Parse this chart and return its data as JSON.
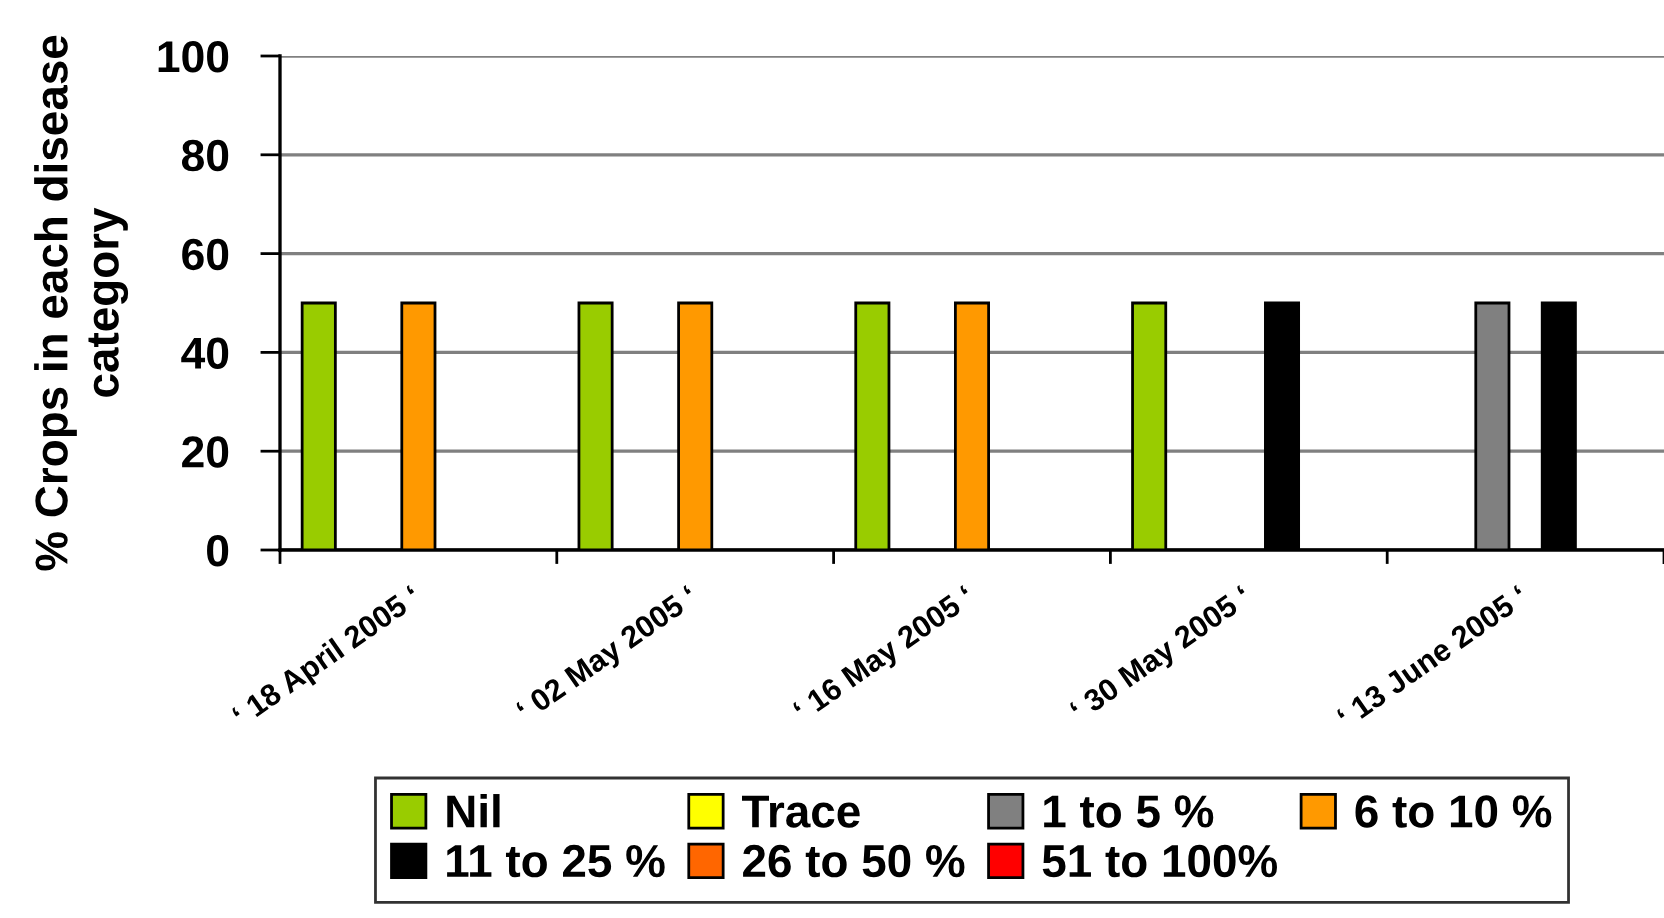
{
  "chart_data": {
    "type": "bar",
    "ylabel": "% Crops in each disease category",
    "categories": [
      "‘ 18 April 2005 ‘",
      "‘ 02 May 2005 ‘",
      "‘ 16 May 2005 ‘",
      "‘ 30 May 2005 ‘",
      "‘ 13 June 2005 ‘"
    ],
    "series": [
      {
        "name": "Nil",
        "color": "#99cc00",
        "values": [
          50,
          50,
          50,
          50,
          null
        ]
      },
      {
        "name": "Trace",
        "color": "#ffff00",
        "values": [
          null,
          null,
          null,
          null,
          null
        ]
      },
      {
        "name": "1 to 5 %",
        "color": "#808080",
        "values": [
          null,
          null,
          null,
          null,
          50
        ]
      },
      {
        "name": "6 to 10 %",
        "color": "#ff9900",
        "values": [
          50,
          50,
          50,
          null,
          null
        ]
      },
      {
        "name": "11 to 25 %",
        "color": "#000000",
        "values": [
          null,
          null,
          null,
          50,
          50
        ]
      },
      {
        "name": "26 to 50 %",
        "color": "#ff6600",
        "values": [
          null,
          null,
          null,
          null,
          null
        ]
      },
      {
        "name": "51 to 100%",
        "color": "#ff0000",
        "values": [
          null,
          null,
          null,
          null,
          null
        ]
      }
    ],
    "ylim": [
      0,
      100
    ],
    "yticks": [
      0,
      20,
      40,
      60,
      80,
      100
    ],
    "grid": "y",
    "legend": "bottom"
  }
}
